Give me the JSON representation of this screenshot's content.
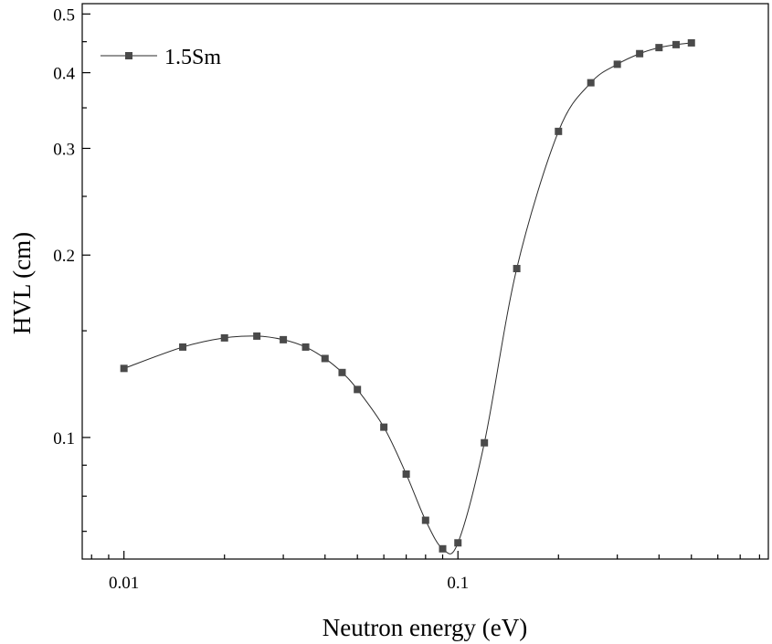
{
  "chart_data": {
    "type": "line",
    "xlabel": "Neutron energy (eV)",
    "ylabel": "HVL (cm)",
    "x_scale": "log",
    "y_scale": "log",
    "xlim": [
      0.0075,
      0.85
    ],
    "ylim": [
      0.063,
      0.52
    ],
    "x_ticks": [
      {
        "value": 0.01,
        "label": "0.01"
      },
      {
        "value": 0.1,
        "label": "0.1"
      }
    ],
    "y_ticks": [
      {
        "value": 0.1,
        "label": "0.1"
      },
      {
        "value": 0.2,
        "label": "0.2"
      },
      {
        "value": 0.3,
        "label": "0.3"
      },
      {
        "value": 0.4,
        "label": "0.4"
      },
      {
        "value": 0.5,
        "label": "0.5"
      }
    ],
    "grid": false,
    "legend_position": "top-left",
    "colors": {
      "marker": "#4a4a4a",
      "line": "#2b2b2b",
      "axis": "#000000"
    },
    "series": [
      {
        "name": "1.5Sm",
        "marker": "square",
        "x": [
          0.01,
          0.015,
          0.02,
          0.025,
          0.03,
          0.035,
          0.04,
          0.045,
          0.05,
          0.06,
          0.07,
          0.08,
          0.09,
          0.1,
          0.12,
          0.15,
          0.2,
          0.25,
          0.3,
          0.35,
          0.4,
          0.45,
          0.5
        ],
        "y": [
          0.13,
          0.141,
          0.146,
          0.147,
          0.145,
          0.141,
          0.135,
          0.128,
          0.12,
          0.104,
          0.087,
          0.073,
          0.0655,
          0.067,
          0.098,
          0.19,
          0.32,
          0.385,
          0.413,
          0.43,
          0.44,
          0.445,
          0.448
        ]
      }
    ]
  }
}
